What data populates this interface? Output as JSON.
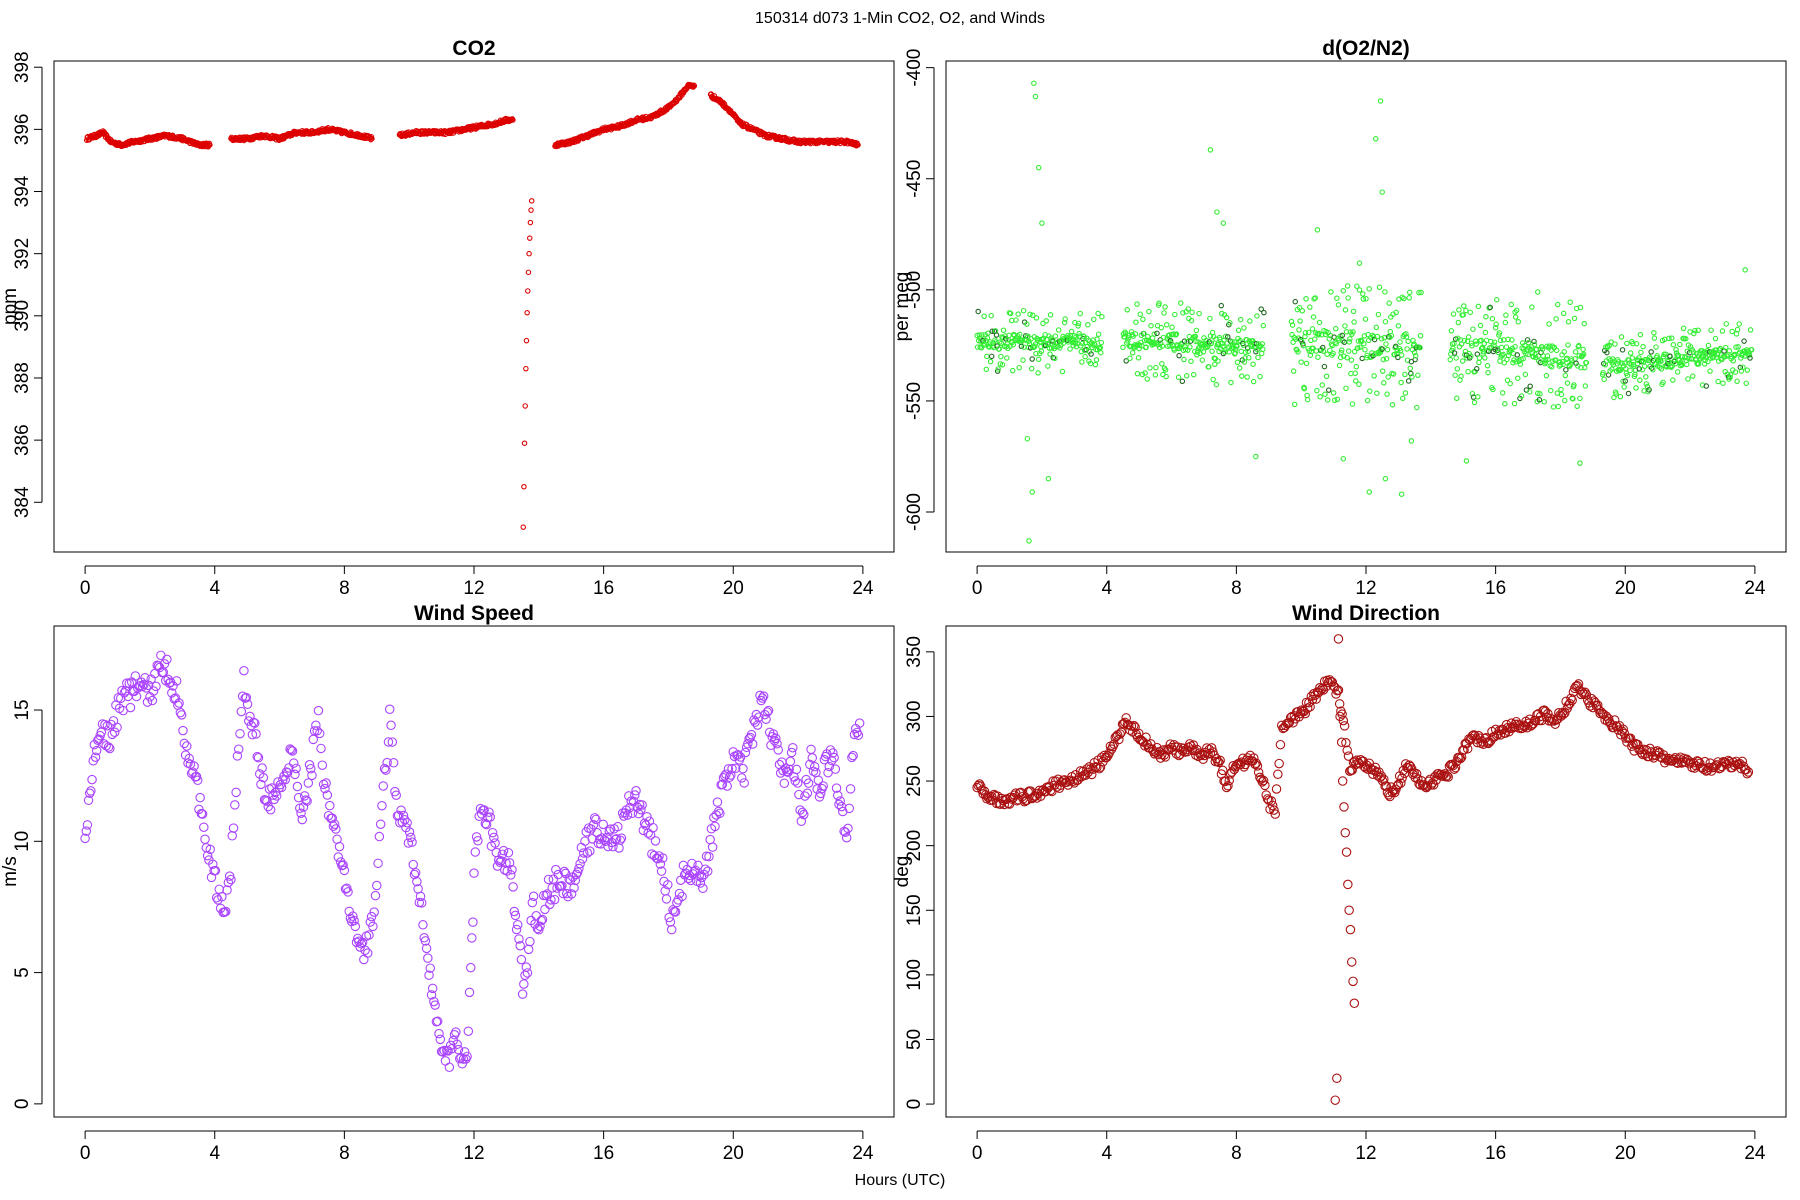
{
  "figure": {
    "title": "150314   d073   1-Min CO2, O2, and Winds",
    "xlabel": "Hours (UTC)"
  },
  "chart_data": [
    {
      "type": "scatter",
      "title": "CO2",
      "xlabel": "",
      "ylabel": "ppm",
      "xlim": [
        -0.96,
        24.96
      ],
      "ylim": [
        382.4,
        398.2
      ],
      "xticks": [
        0,
        4,
        8,
        12,
        16,
        20,
        24
      ],
      "yticks": [
        384,
        386,
        388,
        390,
        392,
        394,
        396,
        398
      ],
      "grid": false,
      "marker_color": "#dd0000",
      "marker_radius": 2.2,
      "segments": [
        {
          "x": [
            0.05,
            0.35,
            0.55,
            0.8,
            1.1,
            1.5,
            2.0,
            2.5,
            3.0,
            3.5,
            3.85
          ],
          "y": [
            395.7,
            395.8,
            395.9,
            395.6,
            395.5,
            395.6,
            395.7,
            395.8,
            395.7,
            395.5,
            395.5
          ]
        },
        {
          "x": [
            4.5,
            5.0,
            5.5,
            6.0,
            6.5,
            7.0,
            7.5,
            8.0,
            8.5,
            8.85
          ],
          "y": [
            395.7,
            395.7,
            395.8,
            395.7,
            395.9,
            395.9,
            396.0,
            395.9,
            395.8,
            395.7
          ]
        },
        {
          "x": [
            9.7,
            10.2,
            10.7,
            11.2,
            11.7,
            12.2,
            12.7,
            13.0,
            13.2
          ],
          "y": [
            395.8,
            395.9,
            395.9,
            395.9,
            396.0,
            396.1,
            396.2,
            396.3,
            396.3
          ]
        },
        {
          "x": [
            14.5,
            15.0,
            15.5,
            16.0,
            16.5,
            17.0,
            17.5,
            18.0,
            18.3,
            18.6,
            18.8
          ],
          "y": [
            395.5,
            395.6,
            395.8,
            396.0,
            396.1,
            396.3,
            396.4,
            396.7,
            397.0,
            397.4,
            397.4
          ]
        },
        {
          "x": [
            19.3,
            19.6,
            19.9,
            20.2,
            20.6,
            21.0,
            21.5,
            22.0,
            22.5,
            23.0,
            23.5,
            23.85
          ],
          "y": [
            397.1,
            396.9,
            396.6,
            396.2,
            396.0,
            395.8,
            395.7,
            395.6,
            395.6,
            395.6,
            395.6,
            395.5
          ]
        }
      ],
      "dips": [
        {
          "x": [
            13.52,
            13.54,
            13.56,
            13.58,
            13.6,
            13.62,
            13.64,
            13.66,
            13.68,
            13.7,
            13.72,
            13.74,
            13.76,
            13.78
          ],
          "y": [
            383.2,
            384.5,
            385.9,
            387.1,
            388.3,
            389.2,
            390.1,
            390.8,
            391.4,
            392.0,
            392.5,
            393.0,
            393.4,
            393.7
          ]
        }
      ]
    },
    {
      "type": "scatter",
      "title": "d(O2/N2)",
      "xlabel": "",
      "ylabel": "per meg",
      "xlim": [
        -0.96,
        24.96
      ],
      "ylim": [
        -618,
        -397
      ],
      "xticks": [
        0,
        4,
        8,
        12,
        16,
        20,
        24
      ],
      "yticks": [
        -600,
        -550,
        -500,
        -450,
        -400
      ],
      "grid": false,
      "marker_color": "#33ee33",
      "marker_radius": 2.2,
      "segments": [
        {
          "x": [
            0.0,
            3.85
          ],
          "y": [
            -523,
            -524
          ],
          "spread": 14
        },
        {
          "x": [
            4.5,
            8.85
          ],
          "y": [
            -522,
            -526
          ],
          "spread": 18
        },
        {
          "x": [
            9.7,
            13.7
          ],
          "y": [
            -524,
            -526
          ],
          "spread": 28
        },
        {
          "x": [
            14.6,
            18.8
          ],
          "y": [
            -526,
            -530
          ],
          "spread": 24
        },
        {
          "x": [
            19.3,
            23.9
          ],
          "y": [
            -535,
            -528
          ],
          "spread": 14
        }
      ],
      "outliers": {
        "x": [
          1.6,
          1.75,
          1.8,
          1.9,
          2.0,
          2.2,
          1.7,
          1.55,
          7.2,
          7.4,
          7.6,
          8.6,
          10.5,
          11.3,
          11.8,
          12.1,
          12.3,
          12.45,
          12.5,
          12.6,
          13.1,
          13.4,
          15.1,
          16.6,
          17.3,
          18.6,
          23.7
        ],
        "y": [
          -613,
          -407,
          -413,
          -445,
          -470,
          -585,
          -591,
          -567,
          -437,
          -465,
          -470,
          -575,
          -473,
          -576,
          -488,
          -591,
          -432,
          -415,
          -456,
          -585,
          -592,
          -568,
          -577,
          -510,
          -501,
          -578,
          -491
        ]
      }
    },
    {
      "type": "scatter",
      "title": "Wind Speed",
      "xlabel": "",
      "ylabel": "m/s",
      "xlim": [
        -0.96,
        24.96
      ],
      "ylim": [
        -0.5,
        18.2
      ],
      "xticks": [
        0,
        4,
        8,
        12,
        16,
        20,
        24
      ],
      "yticks": [
        0,
        5,
        10,
        15
      ],
      "grid": false,
      "marker_color": "#aa44ff",
      "marker_radius": 4.2,
      "x": [
        0.0,
        0.25,
        0.5,
        0.8,
        1.1,
        1.4,
        1.7,
        2.0,
        2.3,
        2.6,
        2.9,
        3.1,
        3.4,
        3.7,
        3.9,
        4.1,
        4.3,
        4.5,
        4.7,
        4.9,
        5.2,
        5.5,
        5.8,
        6.1,
        6.4,
        6.7,
        7.0,
        7.2,
        7.4,
        7.7,
        8.0,
        8.3,
        8.6,
        8.8,
        9.0,
        9.2,
        9.4,
        9.6,
        9.9,
        10.2,
        10.5,
        10.8,
        11.0,
        11.2,
        11.4,
        11.6,
        11.75,
        11.9,
        12.0,
        12.2,
        12.5,
        12.8,
        13.1,
        13.35,
        13.5,
        13.65,
        13.8,
        14.0,
        14.3,
        14.6,
        14.9,
        15.2,
        15.5,
        15.8,
        16.1,
        16.4,
        16.7,
        17.0,
        17.3,
        17.6,
        17.9,
        18.1,
        18.3,
        18.5,
        18.8,
        19.1,
        19.4,
        19.7,
        20.0,
        20.3,
        20.6,
        20.9,
        21.2,
        21.5,
        21.8,
        22.1,
        22.4,
        22.7,
        23.0,
        23.3,
        23.5,
        23.7,
        23.9
      ],
      "y": [
        10.2,
        13.0,
        14.2,
        14.0,
        15.4,
        15.6,
        16.0,
        15.6,
        16.6,
        16.4,
        15.4,
        13.8,
        12.2,
        10.6,
        9.0,
        8.0,
        7.0,
        9.0,
        13.0,
        16.0,
        14.2,
        12.2,
        11.5,
        12.0,
        13.5,
        11.0,
        13.0,
        15.0,
        12.0,
        10.5,
        8.5,
        6.5,
        5.6,
        6.5,
        8.5,
        12.0,
        14.5,
        11.5,
        10.5,
        8.8,
        6.5,
        3.5,
        2.0,
        1.5,
        2.5,
        2.2,
        1.2,
        5.0,
        8.5,
        11.5,
        10.5,
        9.0,
        9.5,
        6.5,
        4.5,
        5.5,
        7.5,
        7.0,
        8.0,
        8.5,
        8.2,
        8.8,
        10.0,
        10.5,
        10.2,
        10.0,
        11.0,
        11.8,
        10.5,
        9.8,
        8.5,
        7.0,
        7.5,
        8.8,
        9.2,
        8.5,
        10.5,
        12.0,
        13.2,
        12.5,
        14.0,
        15.5,
        14.0,
        12.5,
        13.5,
        11.0,
        13.0,
        12.0,
        13.5,
        11.5,
        10.0,
        13.5,
        14.5
      ],
      "jitter": 0.55
    },
    {
      "type": "scatter",
      "title": "Wind Direction",
      "xlabel": "",
      "ylabel": "deg",
      "xlim": [
        -0.96,
        24.96
      ],
      "ylim": [
        -10,
        370
      ],
      "xticks": [
        0,
        4,
        8,
        12,
        16,
        20,
        24
      ],
      "yticks": [
        0,
        50,
        100,
        150,
        200,
        250,
        300,
        350
      ],
      "grid": false,
      "marker_color": "#aa1111",
      "marker_radius": 4.2,
      "x": [
        0.0,
        0.3,
        0.6,
        1.0,
        1.5,
        2.0,
        2.5,
        3.0,
        3.5,
        4.0,
        4.3,
        4.6,
        4.8,
        5.1,
        5.4,
        5.7,
        6.0,
        6.3,
        6.6,
        6.9,
        7.2,
        7.5,
        7.7,
        7.9,
        8.2,
        8.5,
        8.8,
        9.0,
        9.2,
        9.4,
        9.6,
        9.9,
        10.2,
        10.5,
        10.8,
        11.0,
        11.15,
        11.3,
        11.5,
        11.8,
        12.1,
        12.4,
        12.7,
        13.0,
        13.3,
        13.6,
        13.9,
        14.2,
        14.5,
        14.8,
        15.1,
        15.4,
        15.7,
        16.0,
        16.3,
        16.6,
        16.9,
        17.2,
        17.5,
        17.8,
        18.1,
        18.4,
        18.6,
        18.8,
        19.0,
        19.3,
        19.6,
        19.9,
        20.2,
        20.5,
        20.8,
        21.1,
        21.5,
        21.9,
        22.3,
        22.7,
        23.1,
        23.5,
        23.8
      ],
      "y": [
        245,
        240,
        235,
        236,
        238,
        242,
        248,
        252,
        258,
        268,
        282,
        298,
        290,
        283,
        276,
        270,
        276,
        272,
        276,
        268,
        275,
        263,
        244,
        262,
        264,
        268,
        252,
        233,
        228,
        292,
        298,
        300,
        308,
        318,
        328,
        322,
        318,
        298,
        258,
        265,
        260,
        255,
        240,
        248,
        264,
        250,
        248,
        252,
        256,
        265,
        278,
        284,
        282,
        286,
        290,
        295,
        293,
        297,
        302,
        295,
        305,
        318,
        322,
        315,
        310,
        303,
        295,
        288,
        278,
        274,
        272,
        268,
        266,
        264,
        262,
        260,
        262,
        264,
        257
      ],
      "jitter": 4,
      "dips": {
        "x": [
          11.05,
          11.1,
          11.15,
          11.2,
          11.25,
          11.28,
          11.32,
          11.36,
          11.4,
          11.44,
          11.48,
          11.52,
          11.56,
          11.6,
          11.64
        ],
        "y": [
          3,
          20,
          360,
          300,
          280,
          250,
          230,
          210,
          195,
          170,
          150,
          135,
          110,
          95,
          78
        ]
      }
    }
  ]
}
